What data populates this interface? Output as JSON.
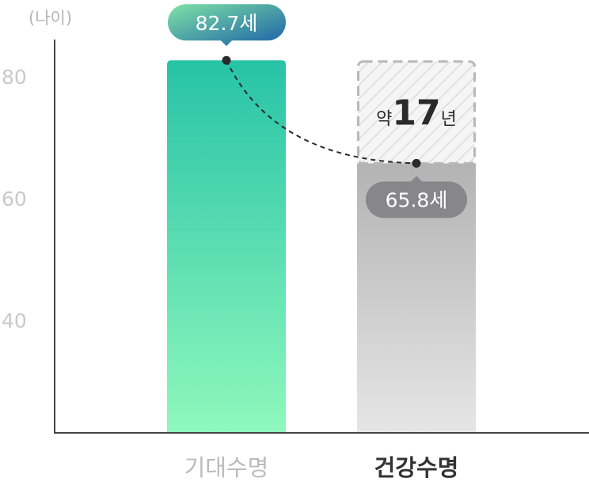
{
  "chart_data": {
    "type": "bar",
    "ylabel": "(나이)",
    "ylim": [
      21.5,
      85
    ],
    "yticks": [
      80,
      60,
      40
    ],
    "categories": [
      "기대수명",
      "건강수명"
    ],
    "values": [
      82.7,
      65.8
    ],
    "data_labels": [
      "82.7세",
      "65.8세"
    ],
    "gap_annotation": {
      "prefix": "약",
      "value": "17",
      "suffix": "년"
    },
    "grid": false,
    "colors": {
      "bar1_top": "#27c3a7",
      "bar1_bottom": "#8ff8bc",
      "bar2_top": "#b3b3b3",
      "bar2_bottom": "#e6e6e6",
      "label1_start": "#7fe3a5",
      "label1_end": "#1a5fa8",
      "label2": "#86868b",
      "category1": "#bbbbbb",
      "category2": "#333333"
    }
  }
}
